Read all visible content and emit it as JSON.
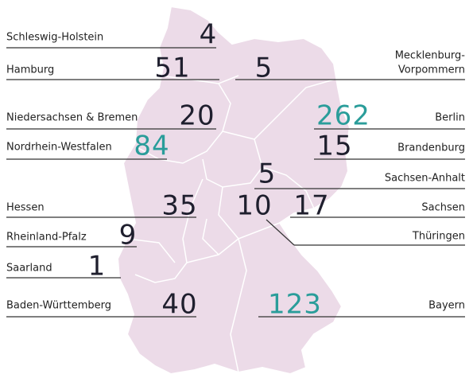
{
  "states": [
    {
      "name": "Schleswig-Holstein",
      "value": 4,
      "color": "#1f1f2e"
    },
    {
      "name": "Hamburg",
      "value": 51,
      "color": "#1f1f2e"
    },
    {
      "name": [
        "Mecklenburg-",
        "Vorpommern"
      ],
      "value": 5,
      "color": "#1f1f2e"
    },
    {
      "name": "Niedersachsen & Bremen",
      "value": 20,
      "color": "#1f1f2e"
    },
    {
      "name": "Berlin",
      "value": 262,
      "color": "#2a9d9a"
    },
    {
      "name": "Nordrhein-Westfalen",
      "value": 84,
      "color": "#2a9d9a"
    },
    {
      "name": "Brandenburg",
      "value": 15,
      "color": "#1f1f2e"
    },
    {
      "name": "Sachsen-Anhalt",
      "value": 5,
      "color": "#1f1f2e"
    },
    {
      "name": "Hessen",
      "value": 35,
      "color": "#1f1f2e"
    },
    {
      "name": "Thüringen",
      "value": 10,
      "color": "#1f1f2e"
    },
    {
      "name": "Sachsen",
      "value": 17,
      "color": "#1f1f2e"
    },
    {
      "name": "Rheinland-Pfalz",
      "value": 9,
      "color": "#1f1f2e"
    },
    {
      "name": "Saarland",
      "value": 1,
      "color": "#1f1f2e"
    },
    {
      "name": "Baden-Württemberg",
      "value": 40,
      "color": "#1f1f2e"
    },
    {
      "name": "Bayern",
      "value": 123,
      "color": "#2a9d9a"
    }
  ]
}
